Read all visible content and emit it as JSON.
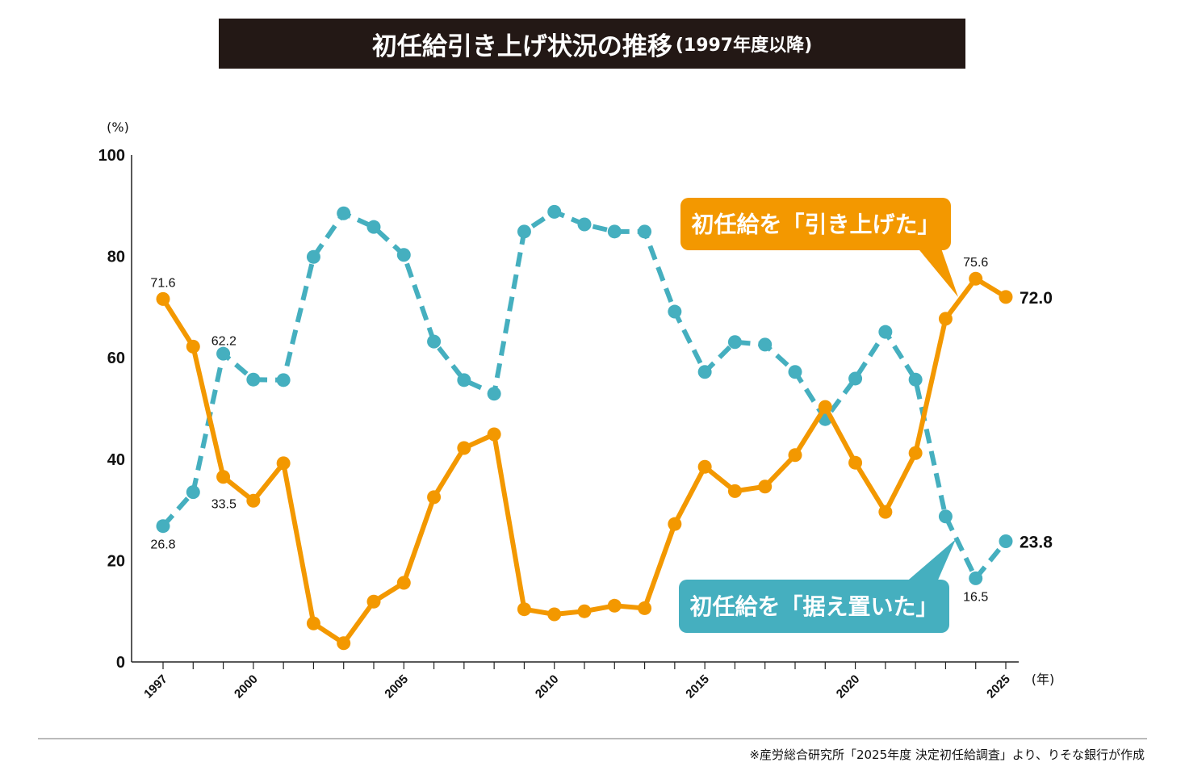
{
  "title": {
    "main": "初任給引き上げ状況の推移",
    "sub": "(1997年度以降)"
  },
  "footnote": "※産労総合研究所「2025年度 決定初任給調査」より、りそな銀行が作成",
  "chart_data": {
    "type": "line",
    "y_unit_label": "(%)",
    "x_unit_label": "(年)",
    "ylim": [
      0,
      100
    ],
    "yticks": [
      0,
      20,
      40,
      60,
      80,
      100
    ],
    "xlim": [
      1997,
      2025
    ],
    "xtick_labels": [
      1997,
      2000,
      2005,
      2010,
      2015,
      2020,
      2025
    ],
    "grid": false,
    "x": [
      1997,
      1998,
      1999,
      2000,
      2001,
      2002,
      2003,
      2004,
      2005,
      2006,
      2007,
      2008,
      2009,
      2010,
      2011,
      2012,
      2013,
      2014,
      2015,
      2016,
      2017,
      2018,
      2019,
      2020,
      2021,
      2022,
      2023,
      2024,
      2025
    ],
    "series": [
      {
        "name": "初任給を「引き上げた」",
        "color": "#f39800",
        "style": "solid",
        "values": [
          71.6,
          62.2,
          36.5,
          31.8,
          39.2,
          7.6,
          3.7,
          11.9,
          15.6,
          32.5,
          42.2,
          44.9,
          10.4,
          9.4,
          10.0,
          11.1,
          10.6,
          27.2,
          38.5,
          33.7,
          34.6,
          40.8,
          50.3,
          39.3,
          29.6,
          41.2,
          67.7,
          75.6,
          72.0
        ]
      },
      {
        "name": "初任給を「据え置いた」",
        "color": "#45afbf",
        "style": "dashed",
        "values": [
          26.8,
          33.5,
          60.8,
          55.7,
          55.6,
          79.9,
          88.5,
          85.8,
          80.3,
          63.2,
          55.6,
          52.9,
          84.9,
          88.8,
          86.3,
          84.9,
          84.9,
          69.1,
          57.2,
          63.1,
          62.6,
          57.2,
          47.9,
          55.9,
          65.1,
          55.7,
          28.7,
          16.5,
          23.8
        ]
      }
    ],
    "annotations": [
      {
        "series": 0,
        "x": 1997,
        "text": "71.6"
      },
      {
        "series": 0,
        "x": 1998,
        "text": "62.2"
      },
      {
        "series": 0,
        "x": 2024,
        "text": "75.6"
      },
      {
        "series": 0,
        "x": 2025,
        "text": "72.0",
        "bold": true
      },
      {
        "series": 1,
        "x": 1997,
        "text": "26.8"
      },
      {
        "series": 1,
        "x": 1998,
        "text": "33.5"
      },
      {
        "series": 1,
        "x": 2024,
        "text": "16.5"
      },
      {
        "series": 1,
        "x": 2025,
        "text": "23.8",
        "bold": true
      }
    ]
  }
}
